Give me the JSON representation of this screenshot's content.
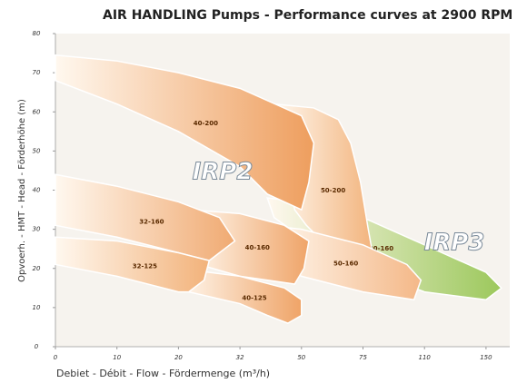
{
  "chart_data": {
    "type": "region",
    "title": "AIR HANDLING Pumps - Performance curves at 2900 RPM",
    "x_label": "Debiet - Débit - Flow - Fördermenge (m³/h)",
    "y_label": "Opvoerh. - HMT - Head - Förderhöhe (m)",
    "xlim": [
      0,
      160
    ],
    "ylim": [
      0,
      80
    ],
    "xticks": [
      0,
      10,
      20,
      32,
      50,
      75,
      110,
      150
    ],
    "yticks": [
      0,
      10,
      20,
      30,
      40,
      50,
      60,
      70,
      80
    ],
    "annotations": [
      "IRP2",
      "IRP3"
    ],
    "regions": [
      {
        "name": "80-160",
        "color": "#9cc85c",
        "points": [
          [
            40,
            38
          ],
          [
            50,
            37
          ],
          [
            75,
            33
          ],
          [
            110,
            26
          ],
          [
            150,
            19
          ],
          [
            160,
            15
          ],
          [
            150,
            12
          ],
          [
            110,
            14
          ],
          [
            75,
            20
          ],
          [
            50,
            28
          ],
          [
            42,
            33
          ]
        ]
      },
      {
        "name": "50-200",
        "color": "#f2b27a",
        "points": [
          [
            42,
            62
          ],
          [
            55,
            61
          ],
          [
            65,
            58
          ],
          [
            70,
            52
          ],
          [
            74,
            42
          ],
          [
            78,
            30
          ],
          [
            82,
            20
          ],
          [
            72,
            22
          ],
          [
            60,
            26
          ],
          [
            52,
            31
          ],
          [
            48,
            35
          ]
        ]
      },
      {
        "name": "40-200",
        "color": "#ee9e5e",
        "points": [
          [
            0,
            74.5
          ],
          [
            10,
            73
          ],
          [
            20,
            70
          ],
          [
            32,
            66
          ],
          [
            50,
            59
          ],
          [
            55,
            52
          ],
          [
            53,
            42
          ],
          [
            50,
            35
          ],
          [
            40,
            39
          ],
          [
            32,
            46
          ],
          [
            20,
            55
          ],
          [
            10,
            62
          ],
          [
            0,
            68
          ]
        ]
      },
      {
        "name": "50-160",
        "color": "#f4b888",
        "points": [
          [
            40,
            31
          ],
          [
            50,
            30
          ],
          [
            75,
            26
          ],
          [
            100,
            21
          ],
          [
            108,
            17
          ],
          [
            104,
            12
          ],
          [
            75,
            14
          ],
          [
            50,
            18
          ],
          [
            42,
            22
          ]
        ]
      },
      {
        "name": "40-160",
        "color": "#efa468",
        "points": [
          [
            22,
            35
          ],
          [
            32,
            34
          ],
          [
            45,
            31
          ],
          [
            53,
            27
          ],
          [
            51,
            20
          ],
          [
            48,
            16
          ],
          [
            32,
            18
          ],
          [
            24,
            21
          ]
        ]
      },
      {
        "name": "32-160",
        "color": "#f0aa72",
        "points": [
          [
            0,
            44
          ],
          [
            10,
            41
          ],
          [
            20,
            37
          ],
          [
            28,
            33
          ],
          [
            31,
            27
          ],
          [
            26,
            22
          ],
          [
            20,
            24
          ],
          [
            10,
            28
          ],
          [
            0,
            31
          ]
        ]
      },
      {
        "name": "40-125",
        "color": "#efa468",
        "points": [
          [
            20,
            20
          ],
          [
            32,
            18
          ],
          [
            45,
            15
          ],
          [
            50,
            12
          ],
          [
            50,
            8
          ],
          [
            46,
            6
          ],
          [
            40,
            8
          ],
          [
            32,
            11
          ],
          [
            22,
            14
          ]
        ]
      },
      {
        "name": "32-125",
        "color": "#f2b27a",
        "points": [
          [
            0,
            28
          ],
          [
            10,
            27
          ],
          [
            20,
            24
          ],
          [
            26,
            22
          ],
          [
            25,
            17
          ],
          [
            22,
            14
          ],
          [
            20,
            14
          ],
          [
            10,
            18
          ],
          [
            0,
            21
          ]
        ]
      }
    ]
  }
}
